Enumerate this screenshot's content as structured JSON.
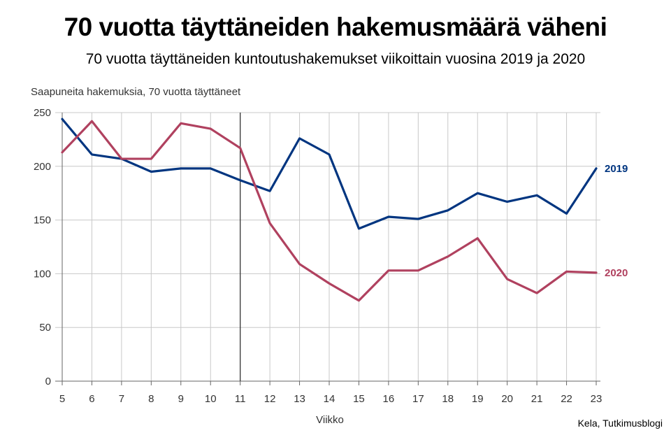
{
  "title": "70 vuotta täyttäneiden hakemusmäärä väheni",
  "subtitle": "70 vuotta täyttäneiden kuntoutushakemukset viikoittain vuosina 2019 ja 2020",
  "source": "Kela, Tutkimusblogi",
  "chart_data": {
    "type": "line",
    "ylabel": "Saapuneita hakemuksia, 70 vuotta täyttäneet",
    "xlabel": "Viikko",
    "x": [
      5,
      6,
      7,
      8,
      9,
      10,
      11,
      12,
      13,
      14,
      15,
      16,
      17,
      18,
      19,
      20,
      21,
      22,
      23
    ],
    "ylim": [
      0,
      250
    ],
    "yticks": [
      0,
      50,
      100,
      150,
      200,
      250
    ],
    "grid": true,
    "marker_x": 11,
    "series": [
      {
        "name": "2019",
        "color": "#003580",
        "values": [
          244,
          211,
          207,
          195,
          198,
          198,
          187,
          177,
          226,
          211,
          142,
          153,
          151,
          159,
          175,
          167,
          173,
          156,
          198
        ]
      },
      {
        "name": "2020",
        "color": "#B0415F",
        "values": [
          213,
          242,
          207,
          207,
          240,
          235,
          217,
          147,
          109,
          91,
          75,
          103,
          103,
          116,
          133,
          95,
          82,
          102,
          101
        ]
      }
    ]
  }
}
